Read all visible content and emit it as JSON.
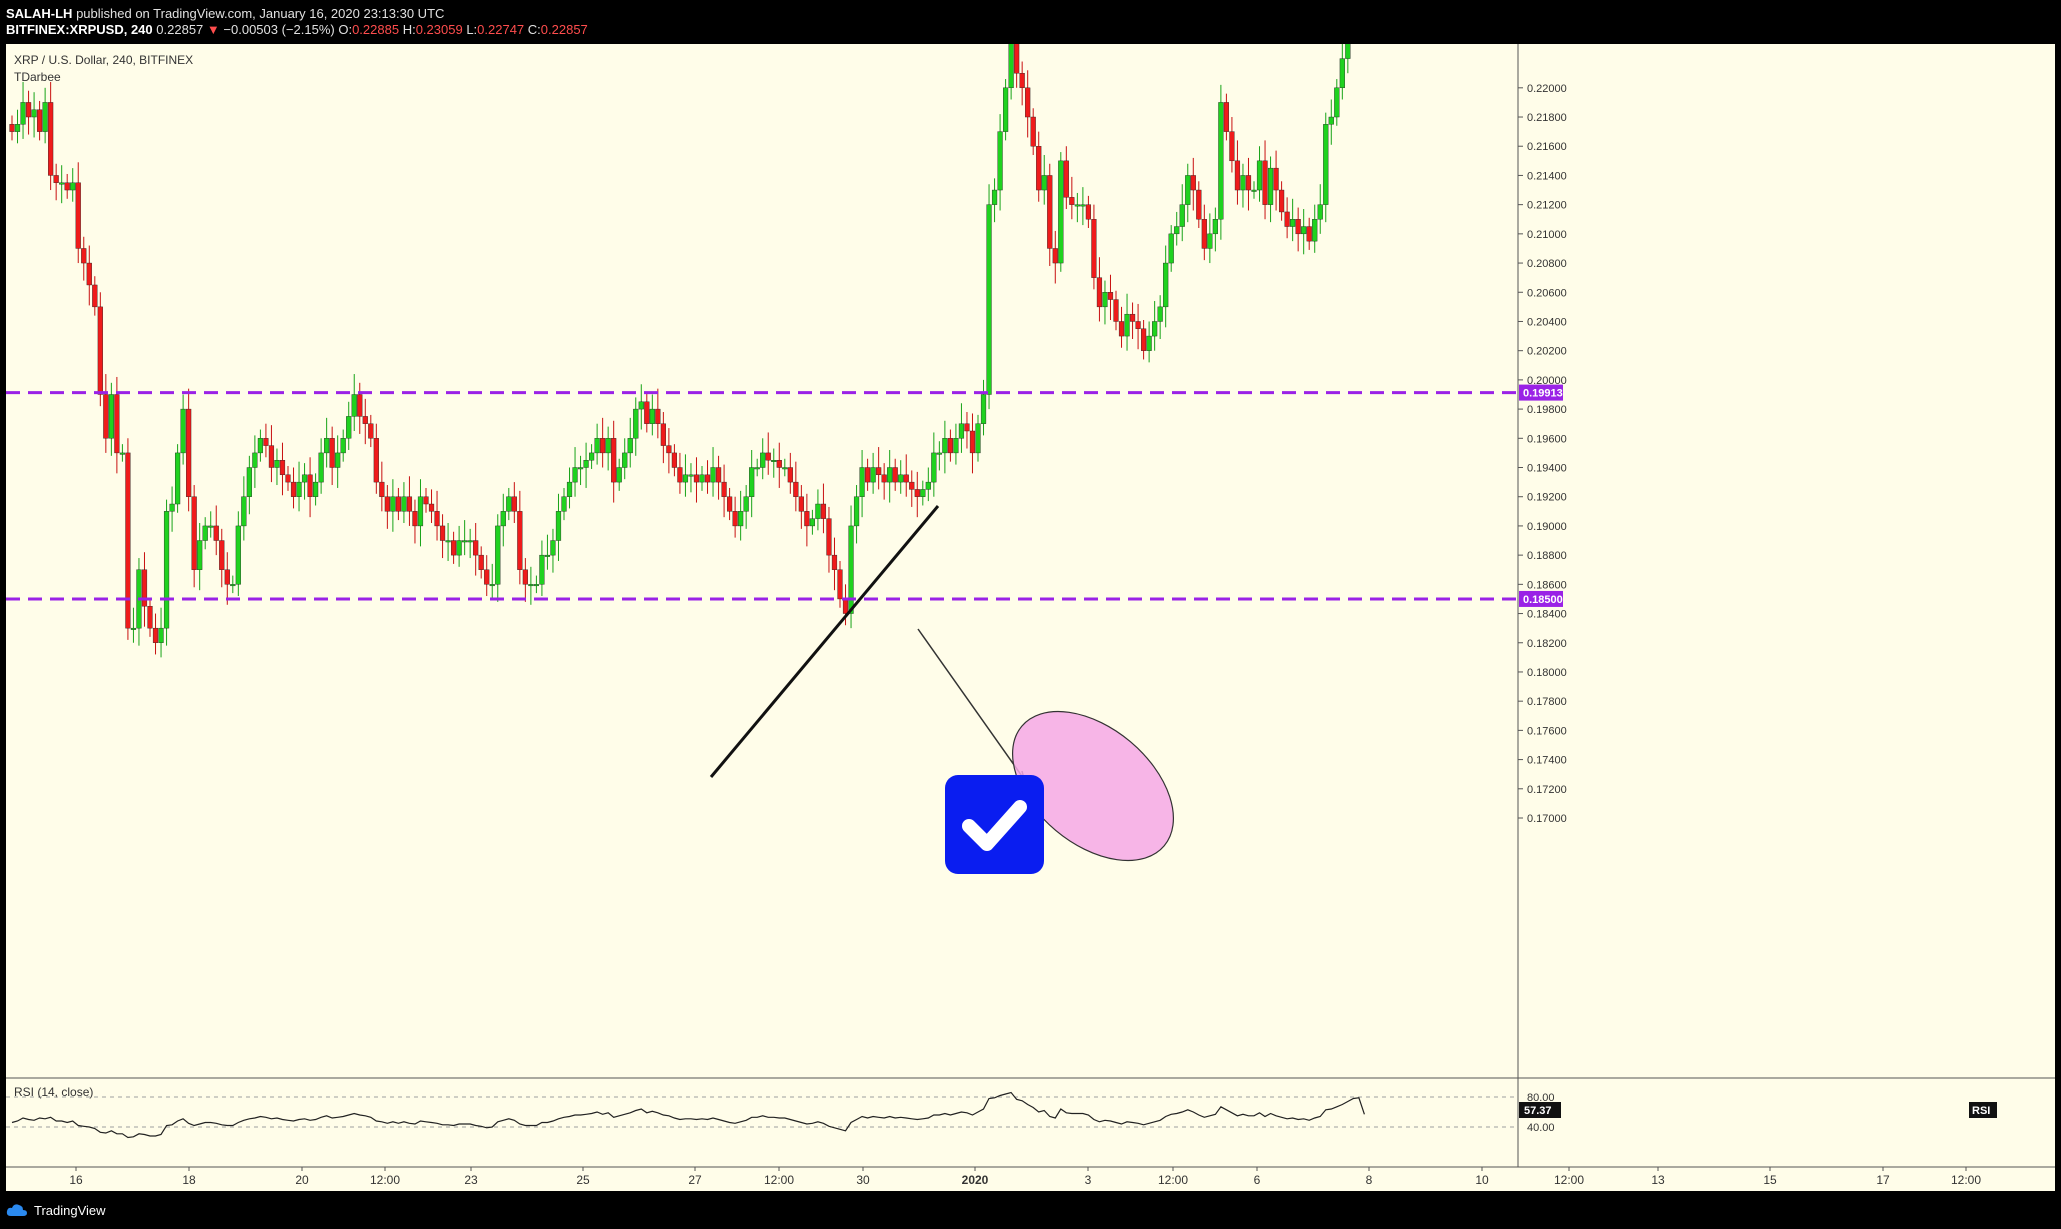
{
  "header": {
    "author": "SALAH-LH",
    "published_text": "published on TradingView.com, January 16, 2020 23:13:30 UTC",
    "symbol": "BITFINEX:XRPUSD, 240",
    "last": "0.22857",
    "change": "−0.00503 (−2.15%)",
    "o_label": "O:",
    "o": "0.22885",
    "h_label": "H:",
    "h": "0.23059",
    "l_label": "L:",
    "l": "0.22747",
    "c_label": "C:",
    "c": "0.22857"
  },
  "legend": {
    "title": "XRP / U.S. Dollar, 240, BITFINEX",
    "indicator": "TDarbee"
  },
  "rsi": {
    "title": "RSI (14, close)",
    "badge_label": "RSI",
    "badge_value": "57.37",
    "levels": [
      "80.00",
      "40.00"
    ]
  },
  "footer": {
    "brand": "TradingView"
  },
  "colors": {
    "background": "#fffde9",
    "up": "#1fd21f",
    "down": "#ef1b1b",
    "level_line": "#9a22e6",
    "ellipse_fill": "#f6a8e6",
    "check_badge": "#0a1df0"
  },
  "chart_data": {
    "type": "candlestick",
    "ylim": [
      0.17,
      0.223
    ],
    "y_ticks": [
      "0.22000",
      "0.21800",
      "0.21600",
      "0.21400",
      "0.21200",
      "0.21000",
      "0.20800",
      "0.20600",
      "0.20400",
      "0.20200",
      "0.20000",
      "0.19800",
      "0.19600",
      "0.19400",
      "0.19200",
      "0.19000",
      "0.18800",
      "0.18600",
      "0.18400",
      "0.18200",
      "0.18000",
      "0.17800",
      "0.17600",
      "0.17400",
      "0.17200",
      "0.17000"
    ],
    "x_ticks": [
      "16",
      "18",
      "20",
      "12:00",
      "23",
      "25",
      "27",
      "12:00",
      "30",
      "2020",
      "3",
      "12:00",
      "6",
      "8",
      "10",
      "12:00",
      "13",
      "15",
      "17",
      "12:00"
    ],
    "levels": [
      {
        "value": 0.19913,
        "label": "0.19913"
      },
      {
        "value": 0.185,
        "label": "0.18500"
      }
    ],
    "rsi_levels": [
      80,
      40
    ],
    "close": [
      0.217,
      0.2175,
      0.219,
      0.218,
      0.2185,
      0.217,
      0.219,
      0.214,
      0.2135,
      0.2135,
      0.213,
      0.2135,
      0.209,
      0.208,
      0.2065,
      0.205,
      0.199,
      0.196,
      0.199,
      0.195,
      0.195,
      0.183,
      0.183,
      0.187,
      0.1845,
      0.183,
      0.182,
      0.183,
      0.191,
      0.1915,
      0.195,
      0.198,
      0.192,
      0.187,
      0.189,
      0.19,
      0.19,
      0.189,
      0.187,
      0.186,
      0.186,
      0.19,
      0.192,
      0.194,
      0.195,
      0.196,
      0.1955,
      0.194,
      0.1945,
      0.1935,
      0.193,
      0.192,
      0.193,
      0.1935,
      0.192,
      0.193,
      0.195,
      0.196,
      0.194,
      0.195,
      0.196,
      0.1975,
      0.199,
      0.1975,
      0.197,
      0.196,
      0.193,
      0.192,
      0.191,
      0.192,
      0.191,
      0.192,
      0.191,
      0.19,
      0.192,
      0.1915,
      0.191,
      0.19,
      0.189,
      0.189,
      0.188,
      0.189,
      0.189,
      0.189,
      0.188,
      0.187,
      0.186,
      0.186,
      0.19,
      0.191,
      0.192,
      0.191,
      0.187,
      0.186,
      0.186,
      0.186,
      0.188,
      0.188,
      0.189,
      0.191,
      0.192,
      0.193,
      0.194,
      0.194,
      0.1945,
      0.195,
      0.196,
      0.195,
      0.196,
      0.193,
      0.194,
      0.195,
      0.196,
      0.198,
      0.1985,
      0.197,
      0.198,
      0.197,
      0.1955,
      0.195,
      0.194,
      0.193,
      0.1935,
      0.1935,
      0.193,
      0.1935,
      0.193,
      0.194,
      0.193,
      0.192,
      0.191,
      0.19,
      0.191,
      0.192,
      0.194,
      0.194,
      0.195,
      0.1945,
      0.1945,
      0.194,
      0.194,
      0.193,
      0.192,
      0.191,
      0.19,
      0.1905,
      0.1915,
      0.1905,
      0.188,
      0.187,
      0.185,
      0.184,
      0.19,
      0.192,
      0.194,
      0.193,
      0.194,
      0.1935,
      0.193,
      0.194,
      0.193,
      0.1935,
      0.193,
      0.1925,
      0.192,
      0.1925,
      0.193,
      0.195,
      0.195,
      0.196,
      0.195,
      0.196,
      0.197,
      0.1965,
      0.195,
      0.197,
      0.199,
      0.212,
      0.213,
      0.217,
      0.22,
      0.225,
      0.221,
      0.22,
      0.218,
      0.216,
      0.213,
      0.214,
      0.209,
      0.208,
      0.215,
      0.2125,
      0.212,
      0.212,
      0.212,
      0.211,
      0.207,
      0.205,
      0.206,
      0.2055,
      0.204,
      0.203,
      0.2045,
      0.204,
      0.2035,
      0.202,
      0.203,
      0.204,
      0.205,
      0.208,
      0.21,
      0.2105,
      0.212,
      0.214,
      0.213,
      0.211,
      0.209,
      0.21,
      0.211,
      0.219,
      0.217,
      0.215,
      0.213,
      0.214,
      0.213,
      0.213,
      0.215,
      0.212,
      0.2145,
      0.213,
      0.2115,
      0.2105,
      0.211,
      0.21,
      0.2105,
      0.2095,
      0.211,
      0.212,
      0.2175,
      0.218,
      0.22,
      0.222,
      0.2245,
      0.228,
      0.229,
      0.2286
    ],
    "rsi": [
      46,
      48,
      52,
      50,
      49,
      52,
      51,
      53,
      48,
      48,
      46,
      48,
      42,
      41,
      40,
      38,
      33,
      32,
      35,
      31,
      31,
      26,
      27,
      31,
      30,
      28,
      28,
      30,
      42,
      43,
      48,
      51,
      45,
      42,
      44,
      46,
      46,
      45,
      43,
      42,
      42,
      46,
      49,
      51,
      52,
      54,
      53,
      51,
      52,
      50,
      49,
      48,
      50,
      51,
      49,
      50,
      53,
      55,
      52,
      53,
      54,
      56,
      58,
      56,
      55,
      53,
      48,
      47,
      45,
      47,
      45,
      47,
      45,
      44,
      48,
      47,
      46,
      45,
      43,
      43,
      42,
      44,
      44,
      44,
      42,
      41,
      39,
      40,
      47,
      49,
      51,
      49,
      44,
      42,
      42,
      42,
      46,
      46,
      48,
      51,
      53,
      54,
      56,
      56,
      57,
      58,
      60,
      57,
      59,
      53,
      55,
      57,
      59,
      62,
      64,
      59,
      61,
      59,
      56,
      55,
      52,
      50,
      51,
      51,
      50,
      51,
      50,
      52,
      50,
      48,
      46,
      45,
      47,
      49,
      53,
      53,
      55,
      53,
      53,
      52,
      52,
      50,
      48,
      46,
      44,
      45,
      47,
      45,
      41,
      39,
      37,
      35,
      46,
      50,
      54,
      52,
      54,
      53,
      52,
      54,
      52,
      53,
      52,
      51,
      50,
      51,
      52,
      56,
      56,
      58,
      56,
      58,
      60,
      59,
      56,
      60,
      64,
      78,
      79,
      82,
      84,
      86,
      77,
      75,
      70,
      66,
      60,
      62,
      54,
      52,
      64,
      59,
      58,
      58,
      58,
      56,
      50,
      47,
      49,
      48,
      46,
      44,
      47,
      46,
      45,
      43,
      45,
      47,
      49,
      54,
      57,
      58,
      60,
      63,
      60,
      56,
      53,
      55,
      57,
      67,
      63,
      59,
      55,
      57,
      55,
      55,
      59,
      54,
      58,
      55,
      53,
      51,
      52,
      50,
      51,
      49,
      52,
      54,
      63,
      64,
      67,
      70,
      74,
      78,
      79,
      57
    ]
  }
}
